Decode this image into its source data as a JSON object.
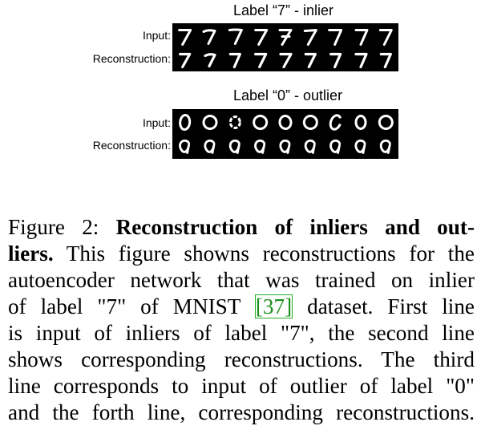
{
  "panels": [
    {
      "title": "Label “7” - inlier",
      "rows": [
        {
          "label": "Input:",
          "glyph": "7"
        },
        {
          "label": "Reconstruction:",
          "glyph": "7"
        }
      ]
    },
    {
      "title": "Label “0” - outlier",
      "rows": [
        {
          "label": "Input:",
          "glyph": "0"
        },
        {
          "label": "Reconstruction:",
          "glyph": "0"
        }
      ]
    }
  ],
  "caption": {
    "lines": [
      {
        "prefix": "Figure 2:  ",
        "bold": "Reconstruction of inliers and out-"
      },
      {
        "bold": "liers.",
        "text": " This figure showns reconstructions for the"
      },
      {
        "text": "autoencoder network that was trained on inlier"
      },
      {
        "text": "of label \"7\" of MNIST ",
        "cite": "[37]",
        "after": " dataset.  First line"
      },
      {
        "text": "is input of inliers of label \"7\", the second line"
      },
      {
        "text": "shows corresponding reconstructions. The third"
      },
      {
        "text": "line corresponds to input of outlier of label \"0\""
      },
      {
        "text": "and the forth line, corresponding reconstructions."
      }
    ]
  }
}
